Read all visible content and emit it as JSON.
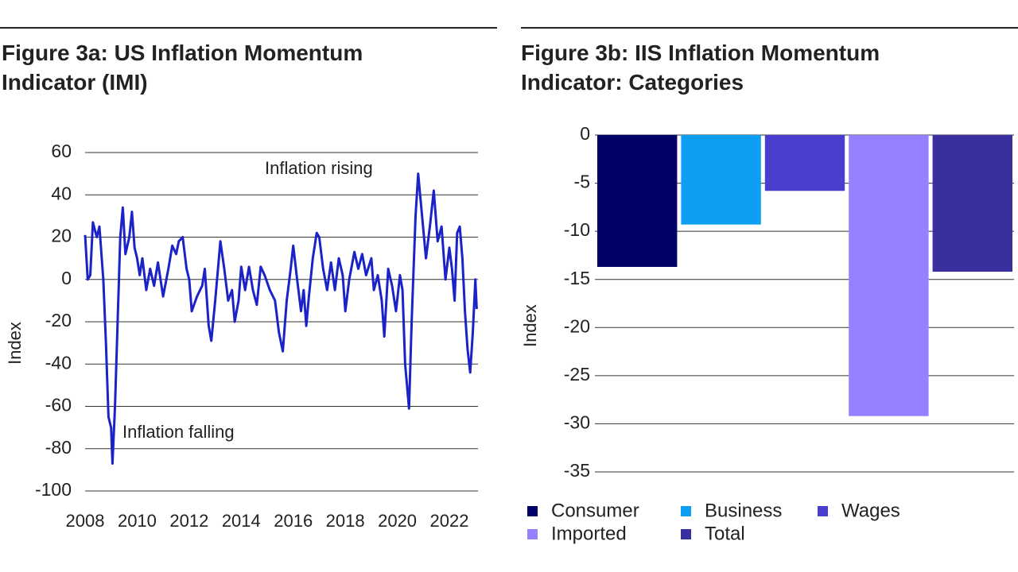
{
  "chart_data": [
    {
      "type": "line",
      "title": "Figure 3a: US Inflation Momentum Indicator (IMI)",
      "y_label": "Index",
      "annotations": [
        "Inflation rising",
        "Inflation falling"
      ],
      "x": [
        2008.0,
        2008.1,
        2008.2,
        2008.3,
        2008.45,
        2008.55,
        2008.7,
        2008.8,
        2008.9,
        2009.0,
        2009.05,
        2009.15,
        2009.25,
        2009.35,
        2009.45,
        2009.55,
        2009.7,
        2009.8,
        2009.9,
        2010.0,
        2010.1,
        2010.2,
        2010.35,
        2010.5,
        2010.65,
        2010.8,
        2011.0,
        2011.2,
        2011.35,
        2011.5,
        2011.6,
        2011.75,
        2011.9,
        2012.0,
        2012.1,
        2012.3,
        2012.5,
        2012.6,
        2012.75,
        2012.85,
        2013.0,
        2013.2,
        2013.35,
        2013.5,
        2013.65,
        2013.75,
        2013.9,
        2014.0,
        2014.15,
        2014.3,
        2014.45,
        2014.6,
        2014.75,
        2014.9,
        2015.1,
        2015.3,
        2015.45,
        2015.6,
        2015.75,
        2015.9,
        2016.0,
        2016.15,
        2016.3,
        2016.4,
        2016.5,
        2016.6,
        2016.75,
        2016.9,
        2017.0,
        2017.15,
        2017.3,
        2017.45,
        2017.6,
        2017.75,
        2017.9,
        2018.0,
        2018.15,
        2018.35,
        2018.5,
        2018.65,
        2018.8,
        2019.0,
        2019.1,
        2019.25,
        2019.4,
        2019.5,
        2019.65,
        2019.8,
        2019.95,
        2020.1,
        2020.2,
        2020.3,
        2020.45,
        2020.55,
        2020.7,
        2020.8,
        2020.95,
        2021.1,
        2021.25,
        2021.4,
        2021.55,
        2021.7,
        2021.85,
        2022.0,
        2022.1,
        2022.2,
        2022.3,
        2022.4,
        2022.5,
        2022.6,
        2022.7,
        2022.8,
        2022.9,
        2023.0,
        2023.05
      ],
      "series": [
        {
          "name": "IMI",
          "color": "#1a22c8",
          "values": [
            21,
            0,
            2,
            27,
            20,
            25,
            0,
            -30,
            -65,
            -70,
            -87,
            -60,
            -20,
            20,
            34,
            12,
            20,
            32,
            15,
            10,
            2,
            10,
            -5,
            5,
            -3,
            8,
            -8,
            5,
            16,
            12,
            18,
            20,
            5,
            0,
            -15,
            -8,
            -3,
            5,
            -22,
            -29,
            -10,
            18,
            5,
            -10,
            -5,
            -20,
            -10,
            6,
            -5,
            6,
            -5,
            -12,
            6,
            2,
            -5,
            -10,
            -25,
            -34,
            -10,
            5,
            16,
            0,
            -15,
            -5,
            -22,
            -8,
            10,
            22,
            20,
            5,
            -5,
            8,
            -5,
            10,
            2,
            -15,
            0,
            13,
            5,
            12,
            2,
            10,
            -5,
            2,
            -10,
            -27,
            5,
            -3,
            -15,
            2,
            -5,
            -40,
            -61,
            -20,
            30,
            50,
            30,
            10,
            25,
            42,
            18,
            25,
            0,
            15,
            5,
            -10,
            22,
            25,
            10,
            -15,
            -33,
            -44,
            -25,
            0,
            -14
          ]
        }
      ],
      "xlim": [
        2008,
        2023.1
      ],
      "xticks": [
        2008,
        2010,
        2012,
        2014,
        2016,
        2018,
        2020,
        2022
      ],
      "ylim": [
        -100,
        60
      ],
      "yticks": [
        -100,
        -80,
        -60,
        -40,
        -20,
        0,
        20,
        40,
        60
      ],
      "grid": true
    },
    {
      "type": "bar",
      "title": "Figure 3b: IIS Inflation Momentum Indicator: Categories",
      "y_label": "Index",
      "categories": [
        "Consumer",
        "Business",
        "Wages",
        "Imported",
        "Total"
      ],
      "values": [
        -13.7,
        -9.3,
        -5.8,
        -29.2,
        -14.2
      ],
      "colors": [
        "#000066",
        "#0e9ff2",
        "#4a3ecf",
        "#9580ff",
        "#3a2f9f"
      ],
      "ylim": [
        -35,
        0
      ],
      "yticks": [
        -35,
        -30,
        -25,
        -20,
        -15,
        -10,
        -5,
        0
      ],
      "grid": true,
      "legend": "bottom"
    }
  ]
}
